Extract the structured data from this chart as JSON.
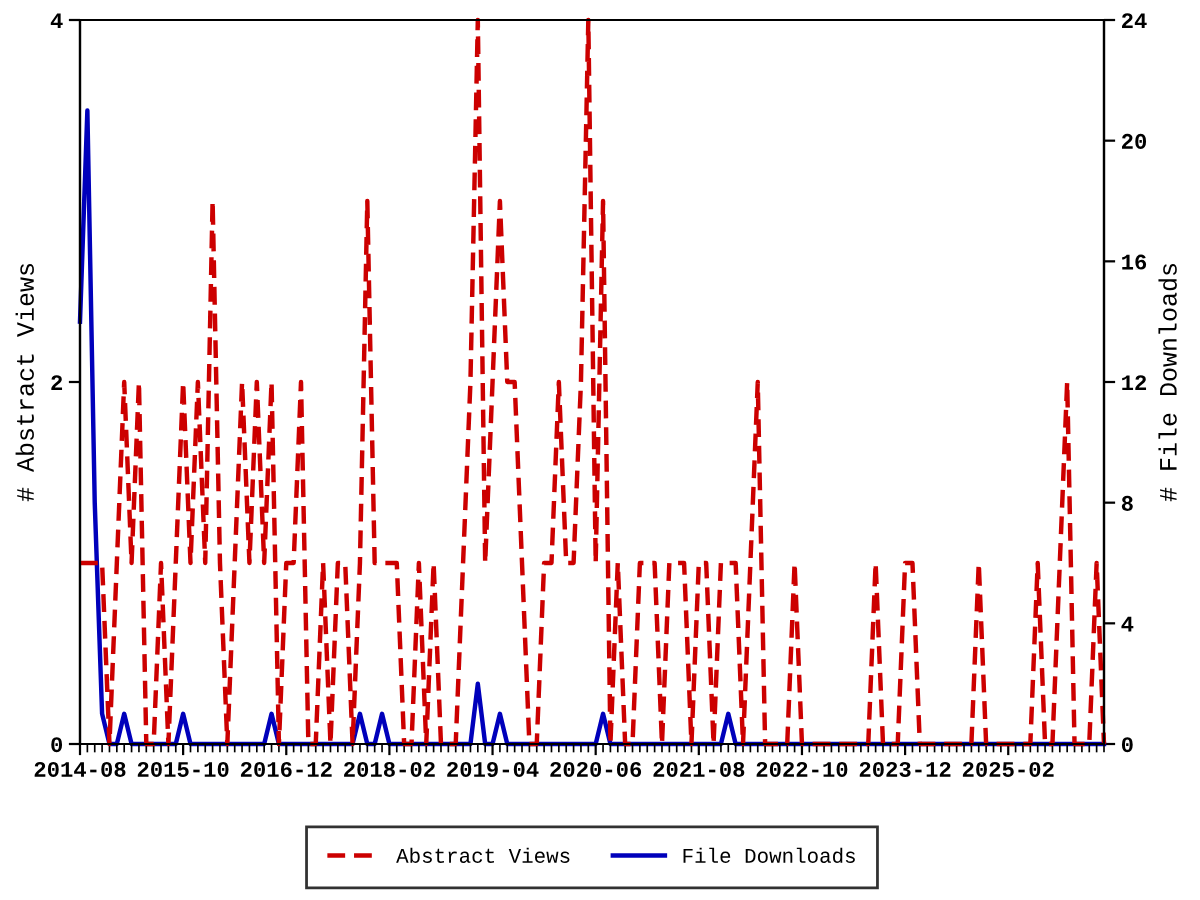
{
  "chart_data": {
    "type": "line",
    "ylabel": "# Abstract Views",
    "y2label": "# File Downloads",
    "x": [
      "2014-08",
      "2014-09",
      "2014-10",
      "2014-11",
      "2014-12",
      "2015-01",
      "2015-02",
      "2015-03",
      "2015-04",
      "2015-05",
      "2015-06",
      "2015-07",
      "2015-08",
      "2015-09",
      "2015-10",
      "2015-11",
      "2015-12",
      "2016-01",
      "2016-02",
      "2016-03",
      "2016-04",
      "2016-05",
      "2016-06",
      "2016-07",
      "2016-08",
      "2016-09",
      "2016-10",
      "2016-11",
      "2016-12",
      "2017-01",
      "2017-02",
      "2017-03",
      "2017-04",
      "2017-05",
      "2017-06",
      "2017-07",
      "2017-08",
      "2017-09",
      "2017-10",
      "2017-11",
      "2017-12",
      "2018-01",
      "2018-02",
      "2018-03",
      "2018-04",
      "2018-05",
      "2018-06",
      "2018-07",
      "2018-08",
      "2018-09",
      "2018-10",
      "2018-11",
      "2018-12",
      "2019-01",
      "2019-02",
      "2019-03",
      "2019-04",
      "2019-05",
      "2019-06",
      "2019-07",
      "2019-08",
      "2019-09",
      "2019-10",
      "2019-11",
      "2019-12",
      "2020-01",
      "2020-02",
      "2020-03",
      "2020-04",
      "2020-05",
      "2020-06",
      "2020-07",
      "2020-08",
      "2020-09",
      "2020-10",
      "2020-11",
      "2020-12",
      "2021-01",
      "2021-02",
      "2021-03",
      "2021-04",
      "2021-05",
      "2021-06",
      "2021-07",
      "2021-08",
      "2021-09",
      "2021-10",
      "2021-11",
      "2021-12",
      "2022-01",
      "2022-02",
      "2022-03",
      "2022-04",
      "2022-05",
      "2022-06",
      "2022-07",
      "2022-08",
      "2022-09",
      "2022-10",
      "2022-11",
      "2022-12",
      "2023-01",
      "2023-02",
      "2023-03",
      "2023-04",
      "2023-05",
      "2023-06",
      "2023-07",
      "2023-08",
      "2023-09",
      "2023-10",
      "2023-11",
      "2023-12",
      "2024-01",
      "2024-02",
      "2024-03",
      "2024-04",
      "2024-05",
      "2024-06",
      "2024-07",
      "2024-08",
      "2024-09",
      "2024-10",
      "2024-11",
      "2024-12",
      "2025-01",
      "2025-02",
      "2025-03",
      "2025-04",
      "2025-05",
      "2025-06",
      "2025-07",
      "2025-08",
      "2025-09",
      "2025-10",
      "2025-11",
      "2025-12",
      "2026-01",
      "2026-02",
      "2026-03"
    ],
    "series": [
      {
        "name": "Abstract Views",
        "color": "#cc0000",
        "line_style": "dashed",
        "values": [
          1,
          1,
          1,
          1,
          0,
          1,
          2,
          1,
          2,
          0,
          0,
          1,
          0,
          1,
          2,
          1,
          2,
          1,
          3,
          1,
          0,
          1,
          2,
          1,
          2,
          1,
          2,
          0,
          1,
          1,
          2,
          0,
          0,
          1,
          0,
          1,
          1,
          0,
          1,
          3,
          1,
          1,
          1,
          1,
          0,
          0,
          1,
          0,
          1,
          0,
          0,
          0,
          1,
          2,
          4,
          1,
          2,
          3,
          2,
          2,
          1,
          0,
          0,
          1,
          1,
          2,
          1,
          1,
          2,
          4,
          1,
          3,
          0,
          1,
          0,
          0,
          1,
          1,
          1,
          0,
          1,
          1,
          1,
          0,
          1,
          1,
          0,
          1,
          1,
          1,
          0,
          1,
          2,
          0,
          0,
          0,
          0,
          1,
          0,
          0,
          0,
          0,
          0,
          0,
          0,
          0,
          0,
          0,
          1,
          0,
          0,
          0,
          1,
          1,
          0,
          0,
          0,
          0,
          0,
          0,
          0,
          0,
          1,
          0,
          0,
          0,
          0,
          0,
          0,
          0,
          1,
          0,
          0,
          1,
          2,
          0,
          0,
          0,
          1,
          0
        ]
      },
      {
        "name": "File Downloads",
        "color": "#0000bb",
        "line_style": "solid",
        "axis": "y2",
        "values": [
          14,
          21,
          8,
          1,
          0,
          0,
          1,
          0,
          0,
          0,
          0,
          0,
          0,
          0,
          1,
          0,
          0,
          0,
          0,
          0,
          0,
          0,
          0,
          0,
          0,
          0,
          1,
          0,
          0,
          0,
          0,
          0,
          0,
          0,
          0,
          0,
          0,
          0,
          1,
          0,
          0,
          1,
          0,
          0,
          0,
          0,
          0,
          0,
          0,
          0,
          0,
          0,
          0,
          0,
          2,
          0,
          0,
          1,
          0,
          0,
          0,
          0,
          0,
          0,
          0,
          0,
          0,
          0,
          0,
          0,
          0,
          1,
          0,
          0,
          0,
          0,
          0,
          0,
          0,
          0,
          0,
          0,
          0,
          0,
          0,
          0,
          0,
          0,
          1,
          0,
          0,
          0,
          0,
          0,
          0,
          0,
          0,
          0,
          0,
          0,
          0,
          0,
          0,
          0,
          0,
          0,
          0,
          0,
          0,
          0,
          0,
          0,
          0,
          0,
          0,
          0,
          0,
          0,
          0,
          0,
          0,
          0,
          0,
          0,
          0,
          0,
          0,
          0,
          0,
          0,
          0,
          0,
          0,
          0,
          0,
          0,
          0,
          0,
          0,
          0
        ]
      }
    ],
    "xlim": [
      "2014-08",
      "2026-03"
    ],
    "xticks": [
      {
        "value": "2014-08",
        "label": "2014-08"
      },
      {
        "value": "2015-10",
        "label": "2015-10"
      },
      {
        "value": "2016-12",
        "label": "2016-12"
      },
      {
        "value": "2018-02",
        "label": "2018-02"
      },
      {
        "value": "2019-04",
        "label": "2019-04"
      },
      {
        "value": "2020-06",
        "label": "2020-06"
      },
      {
        "value": "2021-08",
        "label": "2021-08"
      },
      {
        "value": "2022-10",
        "label": "2022-10"
      },
      {
        "value": "2023-12",
        "label": "2023-12"
      },
      {
        "value": "2025-02",
        "label": "2025-02"
      }
    ],
    "ylim": [
      0,
      4
    ],
    "yticks": [
      0,
      2,
      4
    ],
    "y2lim": [
      0,
      24
    ],
    "y2ticks": [
      0,
      4,
      8,
      12,
      16,
      20,
      24
    ],
    "legend": "bottom",
    "grid": false
  }
}
